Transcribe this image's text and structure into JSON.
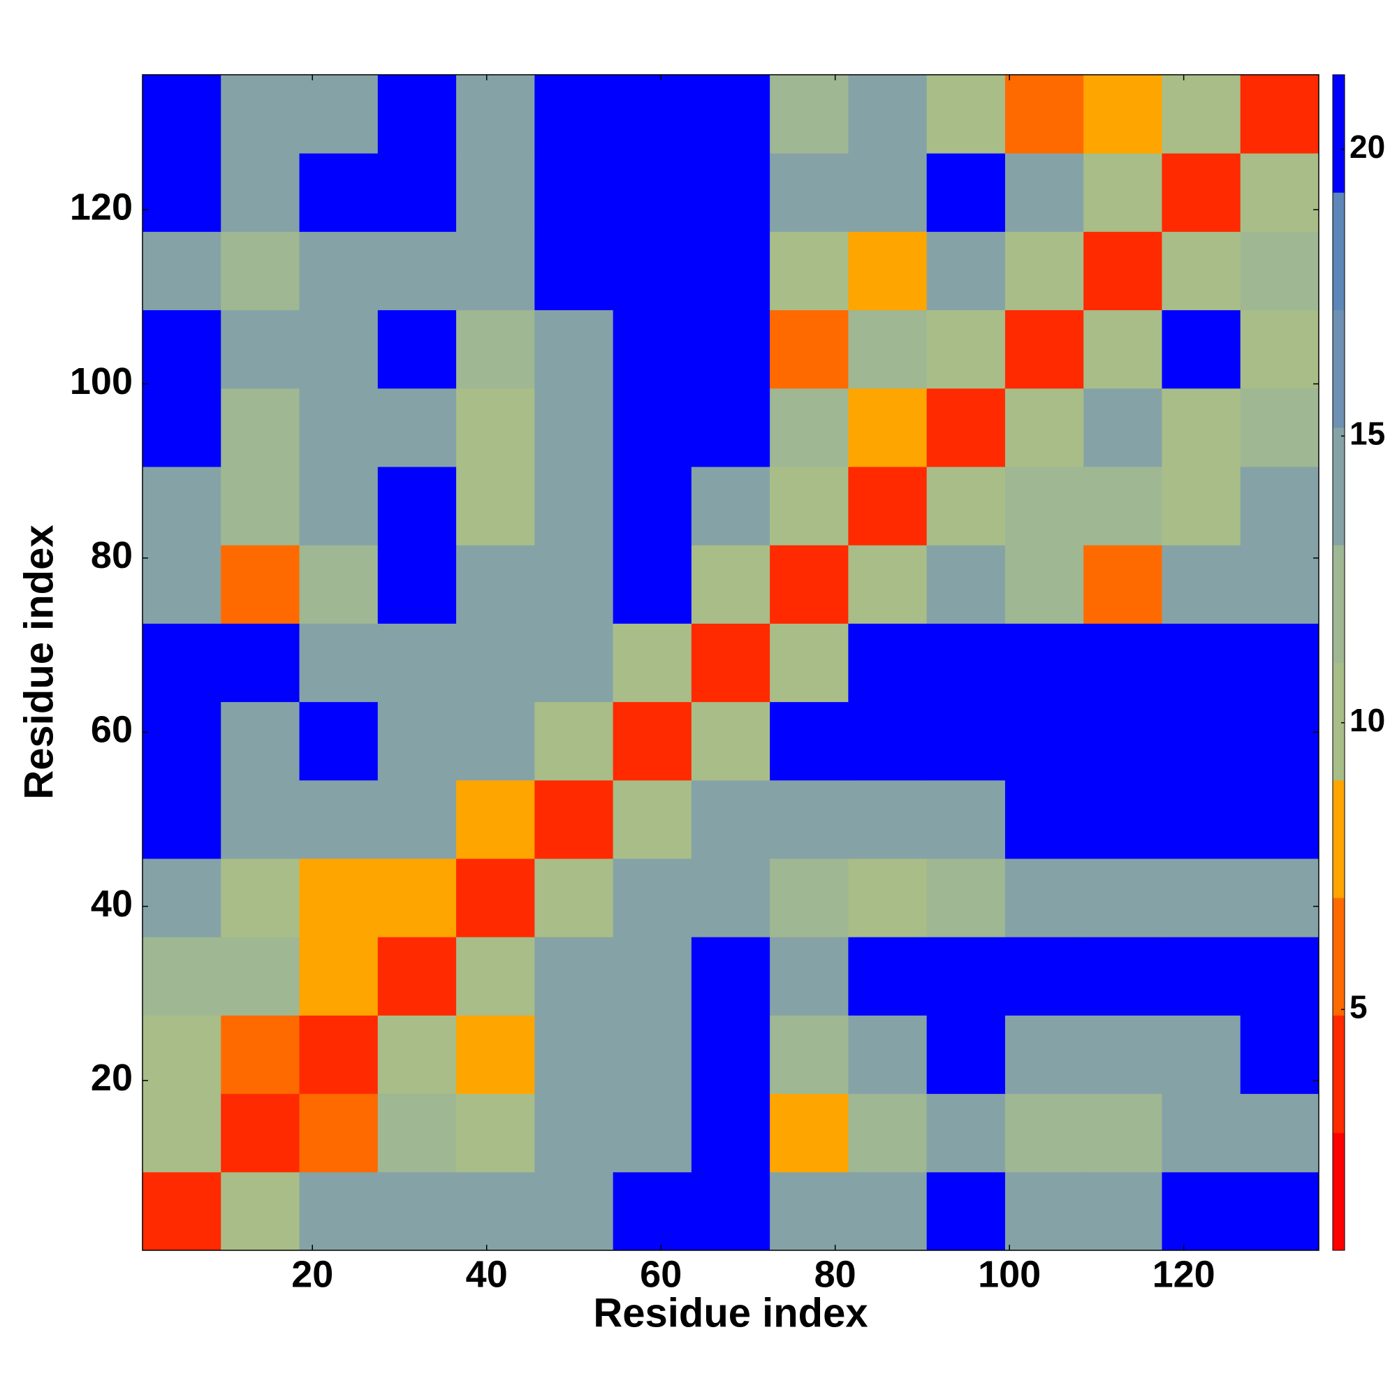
{
  "chart_data": {
    "type": "heatmap",
    "xlabel": "Residue index",
    "ylabel": "Residue index",
    "xlim": [
      0.5,
      135.5
    ],
    "ylim": [
      0.5,
      135.5
    ],
    "xticks": [
      20,
      40,
      60,
      80,
      100,
      120
    ],
    "yticks": [
      20,
      40,
      60,
      80,
      100,
      120
    ],
    "x_bins": [
      0.5,
      9.5,
      18.5,
      27.5,
      36.5,
      45.5,
      54.5,
      63.5,
      72.5,
      81.5,
      90.5,
      99.5,
      108.5,
      117.5,
      126.5,
      135.5
    ],
    "y_bins": [
      0.5,
      9.5,
      18.5,
      27.5,
      36.5,
      45.5,
      54.5,
      63.5,
      72.5,
      81.5,
      90.5,
      99.5,
      108.5,
      117.5,
      126.5,
      135.5
    ],
    "values": [
      [
        3,
        10,
        15,
        15,
        15,
        15,
        21,
        21,
        15,
        15,
        21,
        15,
        15,
        21,
        21
      ],
      [
        10,
        3,
        6,
        12,
        10,
        15,
        15,
        21,
        8,
        12,
        15,
        12,
        12,
        15,
        15
      ],
      [
        10,
        6,
        3,
        10,
        8,
        15,
        15,
        21,
        12,
        15,
        21,
        15,
        15,
        15,
        21
      ],
      [
        12,
        12,
        8,
        3,
        10,
        15,
        15,
        21,
        15,
        21,
        21,
        21,
        21,
        21,
        21
      ],
      [
        15,
        10,
        8,
        8,
        3,
        10,
        15,
        15,
        12,
        10,
        12,
        15,
        15,
        15,
        15
      ],
      [
        21,
        15,
        15,
        15,
        8,
        3,
        10,
        15,
        15,
        15,
        15,
        21,
        21,
        21,
        21
      ],
      [
        21,
        15,
        21,
        15,
        15,
        10,
        3,
        10,
        21,
        21,
        21,
        21,
        21,
        21,
        21
      ],
      [
        21,
        21,
        15,
        15,
        15,
        15,
        10,
        3,
        10,
        21,
        21,
        21,
        21,
        21,
        21
      ],
      [
        15,
        6,
        12,
        21,
        15,
        15,
        21,
        10,
        3,
        10,
        15,
        12,
        6,
        15,
        15
      ],
      [
        15,
        12,
        15,
        21,
        10,
        15,
        21,
        15,
        10,
        3,
        10,
        12,
        12,
        10,
        15
      ],
      [
        21,
        12,
        15,
        15,
        10,
        15,
        21,
        21,
        12,
        8,
        3,
        10,
        15,
        10,
        12
      ],
      [
        21,
        15,
        15,
        21,
        12,
        15,
        21,
        21,
        6,
        12,
        10,
        3,
        10,
        21,
        10
      ],
      [
        15,
        12,
        15,
        15,
        15,
        21,
        21,
        21,
        10,
        8,
        15,
        10,
        3,
        10,
        12
      ],
      [
        21,
        15,
        21,
        21,
        15,
        21,
        21,
        21,
        15,
        15,
        21,
        15,
        10,
        3,
        10
      ],
      [
        21,
        15,
        15,
        21,
        15,
        21,
        21,
        21,
        12,
        15,
        10,
        6,
        8,
        10,
        3
      ]
    ],
    "colorbar": {
      "lim": [
        0.8,
        21.3
      ],
      "ticks": [
        5,
        10,
        15,
        20
      ],
      "colors": [
        "#ff0000",
        "#ff2a00",
        "#ff6a00",
        "#ffa500",
        "#a9bd88",
        "#9fb792",
        "#85a3a6",
        "#6e90b3",
        "#5d86b9",
        "#0000ff"
      ]
    }
  }
}
